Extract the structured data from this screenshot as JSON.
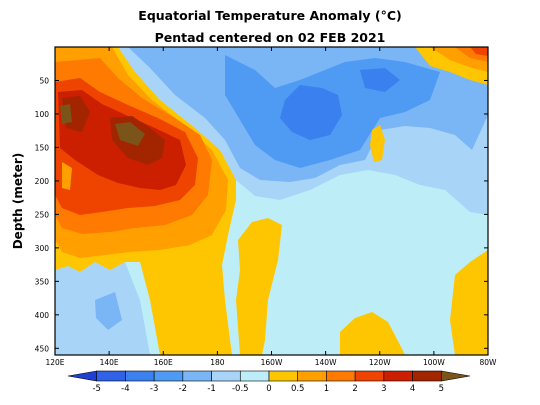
{
  "chart_data": {
    "type": "heatmap",
    "title": "Equatorial Temperature Anomaly (°C)",
    "subtitle": "Pentad centered on 02 FEB 2021",
    "ylabel": "Depth (meter)",
    "xlabel": "",
    "x_ticks": [
      "120E",
      "140E",
      "160E",
      "180",
      "160W",
      "140W",
      "120W",
      "100W",
      "80W"
    ],
    "x_range": [
      "120E",
      "80W"
    ],
    "y_ticks": [
      50,
      100,
      150,
      200,
      250,
      300,
      350,
      400,
      450
    ],
    "y_range": [
      0,
      460
    ],
    "y_reversed": true,
    "colorbar": {
      "labels": [
        "-5",
        "-4",
        "-3",
        "-2",
        "-1",
        "-0.5",
        "0",
        "0.5",
        "1",
        "2",
        "3",
        "4",
        "5"
      ],
      "colors": [
        "#1f3fd4",
        "#2f62e6",
        "#3a80ee",
        "#4f9af3",
        "#7ab6f6",
        "#a8d4f8",
        "#bdeef8",
        "#fdc600",
        "#ffa000",
        "#ff7a00",
        "#ee4400",
        "#cc1f00",
        "#a22500",
        "#7a5418"
      ]
    },
    "regions": [
      {
        "anomaly": "> 0.5",
        "location": "west Pacific 120E-175E, 0-300 m"
      },
      {
        "anomaly": "> 3",
        "location": "core near 125E-165E, 80-210 m"
      },
      {
        "anomaly": "-1 to -2.5",
        "location": "central-east Pacific 175E-115W, 20-150 m"
      },
      {
        "anomaly": "0 to -0.5",
        "location": "deep layer 170E-80W, 170-460 m"
      },
      {
        "anomaly": "> 1",
        "location": "eastern surface 95W-80W, 10-40 m"
      }
    ]
  }
}
